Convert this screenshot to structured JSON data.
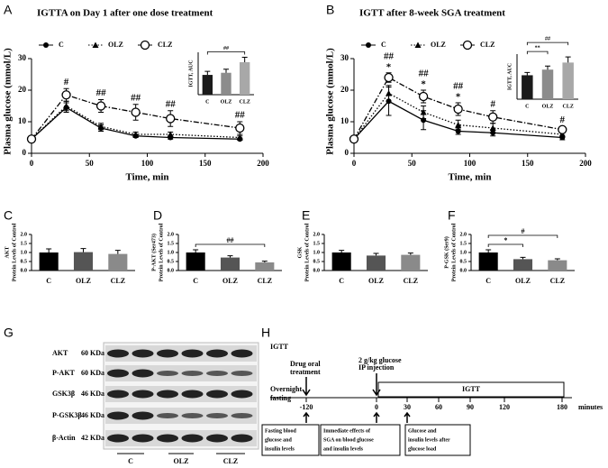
{
  "panel_letters": [
    "A",
    "B",
    "C",
    "D",
    "E",
    "F",
    "G",
    "H"
  ],
  "chart_data": [
    {
      "type": "line",
      "title": "IGTTA on Day 1 after one dose treatment",
      "x_label": "Time, min",
      "y_label": "Plasma glucose (mmol/L)",
      "x": [
        0,
        30,
        60,
        90,
        120,
        180
      ],
      "xlim": [
        0,
        200
      ],
      "xticks": [
        0,
        50,
        100,
        150,
        200
      ],
      "ylim": [
        0,
        30
      ],
      "yticks": [
        0,
        10,
        20,
        30
      ],
      "series": [
        {
          "name": "C",
          "color": "#000000",
          "marker": "circle-filled",
          "dash": "solid",
          "values": [
            4.5,
            14.5,
            8,
            5.5,
            5,
            4.5
          ],
          "errors": [
            0.5,
            1.5,
            1,
            0.5,
            0.5,
            0.3
          ]
        },
        {
          "name": "OLZ",
          "color": "#000000",
          "marker": "triangle",
          "dash": "dotted",
          "values": [
            4.5,
            15,
            8.5,
            6,
            6,
            5
          ],
          "errors": [
            0.5,
            1.5,
            1,
            0.7,
            0.7,
            0.5
          ]
        },
        {
          "name": "CLZ",
          "color": "#000000",
          "marker": "circle-open",
          "dash": "dashdot",
          "values": [
            4.5,
            18.5,
            15,
            13,
            11,
            8
          ],
          "errors": [
            0.5,
            2,
            2,
            2.5,
            2.5,
            2
          ]
        }
      ],
      "annotations": [
        null,
        "#",
        "##",
        "##",
        "##",
        "##"
      ]
    },
    {
      "type": "bar",
      "inset": true,
      "y_label": "IGTT, AUC",
      "categories": [
        "C",
        "OLZ",
        "CLZ"
      ],
      "colors": [
        "#1a1a1a",
        "#8c8c8c",
        "#a8a8a8"
      ],
      "values": [
        1400,
        1550,
        2300
      ],
      "errors": [
        250,
        250,
        350
      ],
      "ylim": [
        0,
        3000
      ],
      "brackets": [
        {
          "pair": [
            "C",
            "CLZ"
          ],
          "label": "##"
        }
      ]
    },
    {
      "type": "line",
      "title": "IGTT after 8-week SGA treatment",
      "x_label": "Time, min",
      "y_label": "Plasma glucose (mmol/L)",
      "x": [
        0,
        30,
        60,
        90,
        120,
        180
      ],
      "xlim": [
        0,
        200
      ],
      "xticks": [
        0,
        50,
        100,
        150,
        200
      ],
      "ylim": [
        0,
        30
      ],
      "yticks": [
        0,
        10,
        20,
        30
      ],
      "series": [
        {
          "name": "C",
          "color": "#000000",
          "marker": "circle-filled",
          "dash": "solid",
          "values": [
            4.5,
            16.5,
            10.5,
            7,
            6.5,
            5
          ],
          "errors": [
            0.5,
            4.5,
            3,
            1,
            1,
            0.7
          ]
        },
        {
          "name": "OLZ",
          "color": "#000000",
          "marker": "triangle",
          "dash": "dotted",
          "values": [
            4.5,
            19,
            13,
            9,
            8,
            6
          ],
          "errors": [
            0.5,
            2.5,
            2,
            1.5,
            1.5,
            1
          ]
        },
        {
          "name": "CLZ",
          "color": "#000000",
          "marker": "circle-open",
          "dash": "dashdot",
          "values": [
            4.5,
            24,
            18,
            14,
            11.5,
            7.5
          ],
          "errors": [
            0.5,
            1.5,
            2,
            2,
            2,
            1
          ]
        }
      ],
      "annotations": [
        null,
        "##",
        "##",
        "##",
        "#",
        "#"
      ],
      "annotations_star": [
        null,
        "*",
        "*",
        "*",
        null,
        null
      ]
    },
    {
      "type": "bar",
      "inset": true,
      "y_label": "IGTT, AUC",
      "categories": [
        "C",
        "OLZ",
        "CLZ"
      ],
      "colors": [
        "#1a1a1a",
        "#8c8c8c",
        "#a8a8a8"
      ],
      "values": [
        1700,
        2100,
        2600
      ],
      "errors": [
        200,
        250,
        400
      ],
      "ylim": [
        0,
        3200
      ],
      "brackets": [
        {
          "pair": [
            "C",
            "OLZ"
          ],
          "label": "**"
        },
        {
          "pair": [
            "C",
            "CLZ"
          ],
          "label": "##"
        }
      ]
    },
    {
      "type": "bar",
      "y_label_top": "AKT",
      "y_label": "Protein Levels of Control",
      "categories": [
        "C",
        "OLZ",
        "CLZ"
      ],
      "colors": [
        "#000000",
        "#555555",
        "#8a8a8a"
      ],
      "values": [
        1.0,
        1.02,
        0.92
      ],
      "errors": [
        0.2,
        0.2,
        0.2
      ],
      "ylim": [
        0,
        2
      ],
      "yticks": [
        {
          "value": 0,
          "label": "0.0"
        },
        {
          "value": 0.5,
          "label": "0.5"
        },
        {
          "value": 1,
          "label": "1.0"
        },
        {
          "value": 1.5,
          "label": "1.5"
        },
        {
          "value": 2,
          "label": "2.0"
        }
      ]
    },
    {
      "type": "bar",
      "y_label_top": "P-AKT (Ser473)",
      "y_label": "Protein Levels of Control",
      "categories": [
        "C",
        "OLZ",
        "CLZ"
      ],
      "colors": [
        "#000000",
        "#555555",
        "#8a8a8a"
      ],
      "values": [
        1.0,
        0.72,
        0.45
      ],
      "errors": [
        0.15,
        0.1,
        0.07
      ],
      "ylim": [
        0,
        2
      ],
      "yticks": [
        {
          "value": 0,
          "label": "0.0"
        },
        {
          "value": 0.5,
          "label": "0.5"
        },
        {
          "value": 1,
          "label": "1.0"
        },
        {
          "value": 1.5,
          "label": "1.5"
        },
        {
          "value": 2,
          "label": "2.0"
        }
      ],
      "brackets": [
        {
          "pair": [
            "C",
            "CLZ"
          ],
          "label": "##"
        }
      ]
    },
    {
      "type": "bar",
      "y_label_top": "GSK",
      "y_label": "Protein Levels of Control",
      "categories": [
        "C",
        "OLZ",
        "CLZ"
      ],
      "colors": [
        "#000000",
        "#555555",
        "#8a8a8a"
      ],
      "values": [
        1.0,
        0.83,
        0.87
      ],
      "errors": [
        0.12,
        0.12,
        0.1
      ],
      "ylim": [
        0,
        2
      ],
      "yticks": [
        {
          "value": 0,
          "label": "0.0"
        },
        {
          "value": 0.5,
          "label": "0.5"
        },
        {
          "value": 1,
          "label": "1.0"
        },
        {
          "value": 1.5,
          "label": "1.5"
        },
        {
          "value": 2,
          "label": "2.0"
        }
      ]
    },
    {
      "type": "bar",
      "y_label_top": "P-GSK (Ser9)",
      "y_label": "Protein Levels of Control",
      "categories": [
        "C",
        "OLZ",
        "CLZ"
      ],
      "colors": [
        "#000000",
        "#555555",
        "#8a8a8a"
      ],
      "values": [
        1.0,
        0.63,
        0.57
      ],
      "errors": [
        0.15,
        0.1,
        0.08
      ],
      "ylim": [
        0,
        2
      ],
      "yticks": [
        {
          "value": 0,
          "label": "0.0"
        },
        {
          "value": 0.5,
          "label": "0.5"
        },
        {
          "value": 1,
          "label": "1.0"
        },
        {
          "value": 1.5,
          "label": "1.5"
        },
        {
          "value": 2,
          "label": "2.0"
        }
      ],
      "brackets": [
        {
          "pair": [
            "C",
            "OLZ"
          ],
          "label": "*"
        },
        {
          "pair": [
            "C",
            "CLZ"
          ],
          "label": "#"
        }
      ]
    }
  ],
  "blot": {
    "rows": [
      "AKT",
      "P-AKT",
      "GSK3β",
      "P-GSK3β",
      "β-Actin"
    ],
    "sizes": [
      "60 KDa",
      "60 KDa",
      "46 KDa",
      "46 KDa",
      "42 KDa"
    ],
    "groups": [
      "C",
      "OLZ",
      "CLZ"
    ]
  },
  "timeline": {
    "heading": "IGTT",
    "drug": [
      "Drug oral",
      "treatment"
    ],
    "injection": [
      "2 g/kg glucose",
      "IP injection"
    ],
    "fasting": [
      "Overnight",
      "fasting"
    ],
    "phase": "IGTT",
    "ticks": [
      "-120",
      "0",
      "30",
      "60",
      "90",
      "120",
      "180"
    ],
    "unit": "minutes",
    "boxes": [
      [
        "Fasting blood",
        "glucose and",
        "insulin levels"
      ],
      [
        "Immediate effects of",
        "SGA on blood glucose",
        "and insulin levels"
      ],
      [
        "Glucose and",
        "insulin levels after",
        "glucose load"
      ]
    ]
  }
}
